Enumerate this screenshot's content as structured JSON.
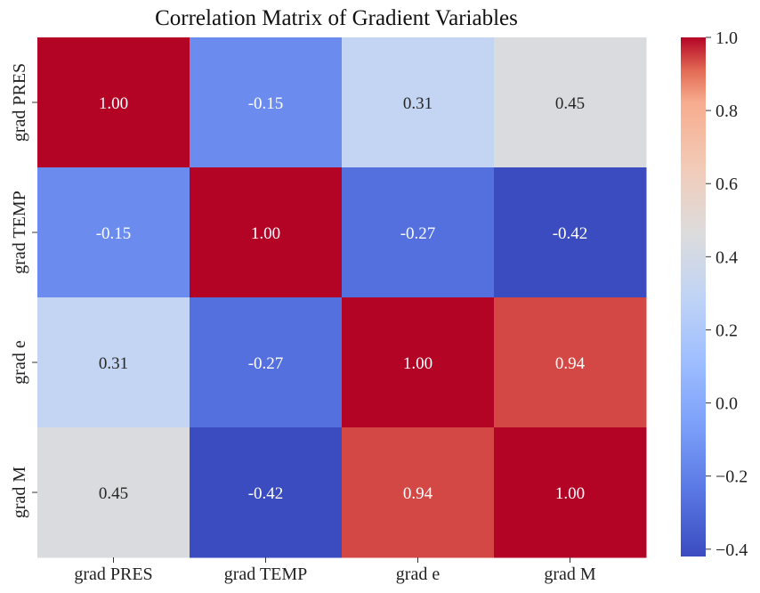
{
  "chart_data": {
    "type": "heatmap",
    "title": "Correlation Matrix of Gradient Variables",
    "x_labels": [
      "grad PRES",
      "grad TEMP",
      "grad e",
      "grad M"
    ],
    "y_labels": [
      "grad PRES",
      "grad TEMP",
      "grad e",
      "grad M"
    ],
    "values": [
      [
        1.0,
        -0.15,
        0.31,
        0.45
      ],
      [
        -0.15,
        1.0,
        -0.27,
        -0.42
      ],
      [
        0.31,
        -0.27,
        1.0,
        0.94
      ],
      [
        0.45,
        -0.42,
        0.94,
        1.0
      ]
    ],
    "cell_labels": [
      [
        "1.00",
        "-0.15",
        "0.31",
        "0.45"
      ],
      [
        "-0.15",
        "1.00",
        "-0.27",
        "-0.42"
      ],
      [
        "0.31",
        "-0.27",
        "1.00",
        "0.94"
      ],
      [
        "0.45",
        "-0.42",
        "0.94",
        "1.00"
      ]
    ],
    "colormap": "coolwarm",
    "vmin": -0.42,
    "vmax": 1.0,
    "colorbar": {
      "ticks": [
        1.0,
        0.8,
        0.6,
        0.4,
        0.2,
        0.0,
        -0.2,
        -0.4
      ],
      "tick_labels": [
        "1.0",
        "0.8",
        "0.6",
        "0.4",
        "0.2",
        "0.0",
        "−0.2",
        "−0.4"
      ]
    }
  }
}
